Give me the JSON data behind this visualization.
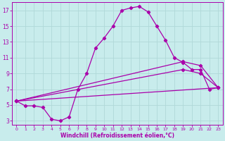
{
  "xlabel": "Windchill (Refroidissement éolien,°C)",
  "background_color": "#c8ecec",
  "grid_color": "#b0d8d8",
  "line_color": "#aa00aa",
  "xlim": [
    -0.5,
    23.5
  ],
  "ylim": [
    2.5,
    18.0
  ],
  "xticks": [
    0,
    1,
    2,
    3,
    4,
    5,
    6,
    7,
    8,
    9,
    10,
    11,
    12,
    13,
    14,
    15,
    16,
    17,
    18,
    19,
    20,
    21,
    22,
    23
  ],
  "yticks": [
    3,
    5,
    7,
    9,
    11,
    13,
    15,
    17
  ],
  "line1_x": [
    0,
    1,
    2,
    3,
    4,
    5,
    6,
    7,
    8,
    9,
    10,
    11,
    12,
    13,
    14,
    15,
    16,
    17,
    18,
    19,
    20,
    21,
    22,
    23
  ],
  "line1_y": [
    5.5,
    4.9,
    4.9,
    4.7,
    3.2,
    3.0,
    3.5,
    7.0,
    9.0,
    12.2,
    13.5,
    15.0,
    17.0,
    17.3,
    17.5,
    16.8,
    15.0,
    13.2,
    11.0,
    10.4,
    9.5,
    9.5,
    7.0,
    7.2
  ],
  "line2_x": [
    0,
    23
  ],
  "line2_y": [
    5.5,
    7.2
  ],
  "line3_x": [
    0,
    19,
    21,
    23
  ],
  "line3_y": [
    5.5,
    10.5,
    10.0,
    7.2
  ],
  "line4_x": [
    0,
    19,
    21,
    23
  ],
  "line4_y": [
    5.5,
    9.5,
    9.0,
    7.2
  ]
}
